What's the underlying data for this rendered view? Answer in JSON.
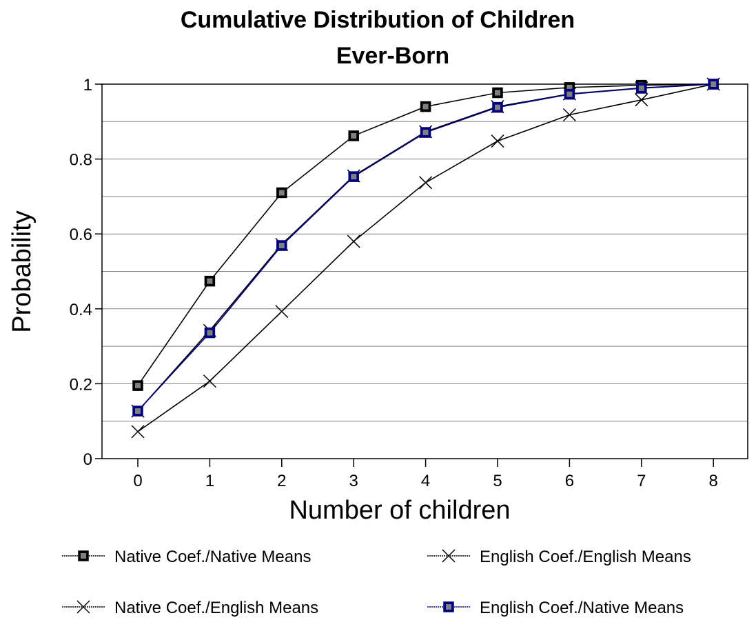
{
  "chart_data": {
    "type": "line",
    "title_lines": [
      "Cumulative Distribution of Children",
      "Ever-Born"
    ],
    "xlabel": "Number of children",
    "ylabel": "Probability",
    "x": [
      0,
      1,
      2,
      3,
      4,
      5,
      6,
      7,
      8
    ],
    "x_tick_labels": [
      "0",
      "1",
      "2",
      "3",
      "4",
      "5",
      "6",
      "7",
      "8"
    ],
    "ylim": [
      0,
      1
    ],
    "y_tick_labels": [
      "0",
      "0.2",
      "0.4",
      "0.6",
      "0.8",
      "1"
    ],
    "y_ticks": [
      0,
      0.2,
      0.4,
      0.6,
      0.8,
      1
    ],
    "grid": "horizontal",
    "legend_position": "bottom",
    "series": [
      {
        "name": "Native Coef./Native Means",
        "marker": "square",
        "color": "#000000",
        "marker_fill": "#000000",
        "values": [
          0.195,
          0.474,
          0.71,
          0.862,
          0.94,
          0.977,
          0.991,
          0.997,
          1.0
        ]
      },
      {
        "name": "English Coef./English Means",
        "marker": "x",
        "color": "#000000",
        "marker_fill": "#000000",
        "values": [
          0.072,
          0.207,
          0.393,
          0.58,
          0.737,
          0.848,
          0.918,
          0.958,
          1.0
        ]
      },
      {
        "name": "Native Coef./English Means",
        "marker": "x",
        "color": "#000000",
        "marker_fill": "#000000",
        "values": [
          0.127,
          0.342,
          0.572,
          0.755,
          0.873,
          0.94,
          0.974,
          0.99,
          1.0
        ]
      },
      {
        "name": "English Coef./Native Means",
        "marker": "square",
        "color": "#000080",
        "marker_fill": "#000080",
        "values": [
          0.127,
          0.336,
          0.569,
          0.753,
          0.871,
          0.938,
          0.973,
          0.989,
          1.0
        ]
      }
    ]
  }
}
